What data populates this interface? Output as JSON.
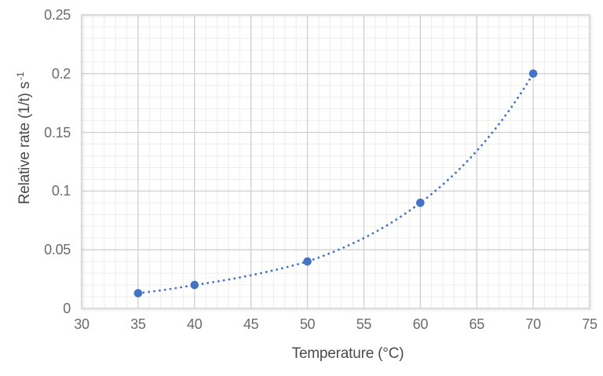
{
  "figure": {
    "background": "#ffffff"
  },
  "chart_data": {
    "type": "scatter",
    "title": "",
    "xlabel": "Temperature (°C)",
    "ylabel": "Relative rate (1/t) s",
    "ylabel_superscript": "-1",
    "x": [
      35,
      40,
      50,
      60,
      70
    ],
    "y": [
      0.013,
      0.02,
      0.04,
      0.09,
      0.2
    ],
    "xlim": [
      30,
      75
    ],
    "ylim": [
      0,
      0.25
    ],
    "x_ticks": [
      30,
      35,
      40,
      45,
      50,
      55,
      60,
      65,
      70,
      75
    ],
    "x_tick_labels": [
      "30",
      "35",
      "40",
      "45",
      "50",
      "55",
      "60",
      "65",
      "70",
      "75"
    ],
    "y_ticks": [
      0,
      0.05,
      0.1,
      0.15,
      0.2,
      0.25
    ],
    "y_tick_labels": [
      "0",
      "0.05",
      "0.1",
      "0.15",
      "0.2",
      "0.25"
    ],
    "x_minor_step": 1,
    "y_minor_step": 0.01,
    "grid": "major and minor, both axes",
    "legend": "none",
    "trendline": {
      "shape": "exponential",
      "style": "dotted",
      "x_start": 35,
      "x_end": 70
    },
    "colors": {
      "marker": "#4472C4",
      "trendline": "#4472C4",
      "major_grid": "#d0d0d0",
      "minor_grid": "#ededed",
      "plot_border": "#d6d6d6",
      "tick_label": "#6b6b6b",
      "axis_title": "#4a4a4a"
    }
  }
}
